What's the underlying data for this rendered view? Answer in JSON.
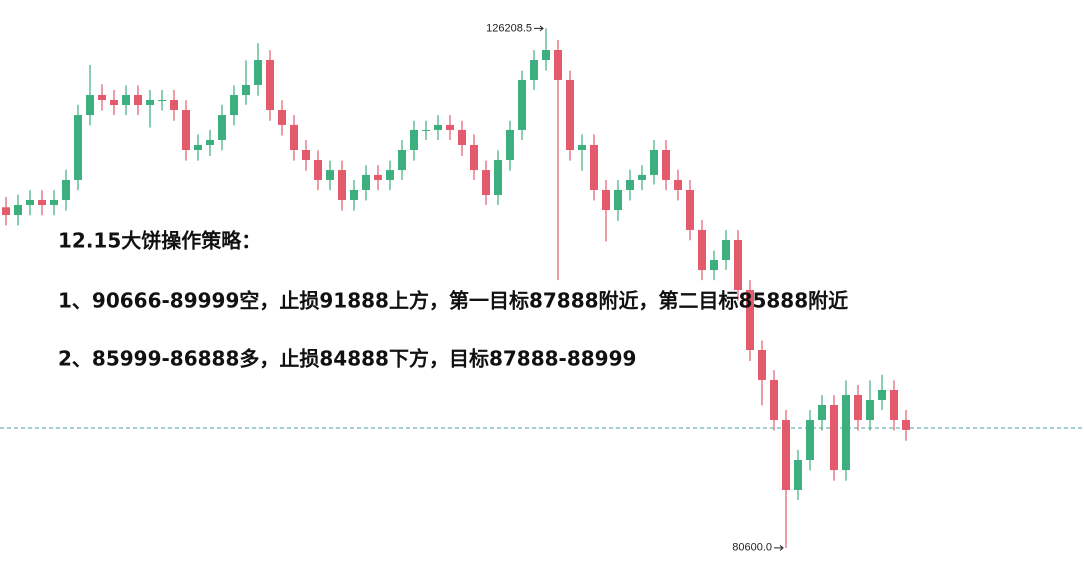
{
  "chart_data": {
    "type": "candlestick",
    "ylim": [
      77600,
      128700
    ],
    "up_color": "#3dae7e",
    "down_color": "#e35a6c",
    "price_line": 91120,
    "price_line_color": "#4aa5a0",
    "max_label": 126208.5,
    "min_label": {
      "value": 80600,
      "label": "80600.0"
    },
    "text_lines": [
      "12.15大饼操作策略：",
      "1、90666-89999空，止损91888上方，第一目标87888附近，第二目标85888附近",
      "2、85999-86888多，止损84888下方，目标87888-88999"
    ],
    "open": [
      110500,
      109820,
      110700,
      111140,
      110700,
      111140,
      112900,
      118600,
      120360,
      119920,
      119480,
      120360,
      119480,
      119920,
      119920,
      119040,
      115530,
      115970,
      116410,
      118600,
      120360,
      121240,
      123430,
      119040,
      117730,
      115530,
      114650,
      112900,
      113770,
      111140,
      112020,
      113340,
      112900,
      113770,
      115530,
      117290,
      117290,
      117730,
      117290,
      115970,
      113770,
      111580,
      114650,
      117290,
      121680,
      123430,
      124310,
      121680,
      115530,
      115970,
      112020,
      110260,
      112020,
      112900,
      113340,
      115530,
      112900,
      112020,
      108510,
      104990,
      105870,
      107630,
      103240,
      97970,
      95340,
      91820,
      85680,
      88310,
      91820,
      93140,
      87430,
      94020,
      91820,
      93580,
      94460,
      91820
    ],
    "high": [
      111400,
      111600,
      112000,
      112000,
      112000,
      113800,
      119500,
      123000,
      121300,
      120800,
      121200,
      121200,
      120800,
      120800,
      120800,
      119900,
      116900,
      117300,
      119500,
      121200,
      123400,
      124900,
      124300,
      119900,
      118600,
      116400,
      115500,
      114600,
      114600,
      112900,
      114200,
      114200,
      114600,
      116400,
      118100,
      118100,
      118600,
      118600,
      118100,
      116900,
      114600,
      115500,
      118100,
      122500,
      124300,
      126208.5,
      125200,
      122500,
      116900,
      116900,
      112900,
      112900,
      113800,
      114200,
      116400,
      116400,
      113800,
      112900,
      109400,
      106700,
      108500,
      108500,
      104100,
      98800,
      96200,
      92700,
      89200,
      92700,
      94000,
      94000,
      95300,
      94900,
      95300,
      95800,
      95300,
      92700
    ],
    "low": [
      108900,
      108900,
      109800,
      109800,
      109800,
      110200,
      112000,
      117700,
      119000,
      118600,
      118600,
      118600,
      117500,
      119000,
      118100,
      114600,
      114600,
      115000,
      115500,
      117700,
      119500,
      120300,
      118100,
      116800,
      114600,
      113700,
      112000,
      112000,
      110200,
      110200,
      111100,
      112000,
      112000,
      112900,
      114600,
      116400,
      116400,
      116400,
      115000,
      112900,
      110700,
      110700,
      113700,
      116400,
      120800,
      122500,
      104100,
      114600,
      113700,
      111100,
      107500,
      109300,
      111100,
      112000,
      112500,
      112000,
      111100,
      107600,
      104100,
      104100,
      105000,
      102300,
      97000,
      93100,
      90900,
      80600,
      84800,
      87400,
      90900,
      86500,
      86500,
      90900,
      90900,
      92700,
      90900,
      90000
    ],
    "close": [
      109820,
      110700,
      111140,
      110700,
      111140,
      112900,
      118600,
      120360,
      119920,
      119480,
      120360,
      119480,
      119920,
      119920,
      119040,
      115530,
      115970,
      116410,
      118600,
      120360,
      121240,
      123430,
      119040,
      117730,
      115530,
      114650,
      112900,
      113770,
      111140,
      112020,
      113340,
      112900,
      113770,
      115530,
      117290,
      117290,
      117730,
      117290,
      115970,
      113770,
      111580,
      114650,
      117290,
      121680,
      123430,
      124310,
      121680,
      115530,
      115970,
      112020,
      110260,
      112020,
      112900,
      113340,
      115530,
      112900,
      112020,
      108510,
      104990,
      105870,
      107630,
      103240,
      97970,
      95340,
      91820,
      85680,
      88310,
      91820,
      93140,
      87430,
      94020,
      91820,
      93580,
      94460,
      91820,
      90950
    ]
  }
}
